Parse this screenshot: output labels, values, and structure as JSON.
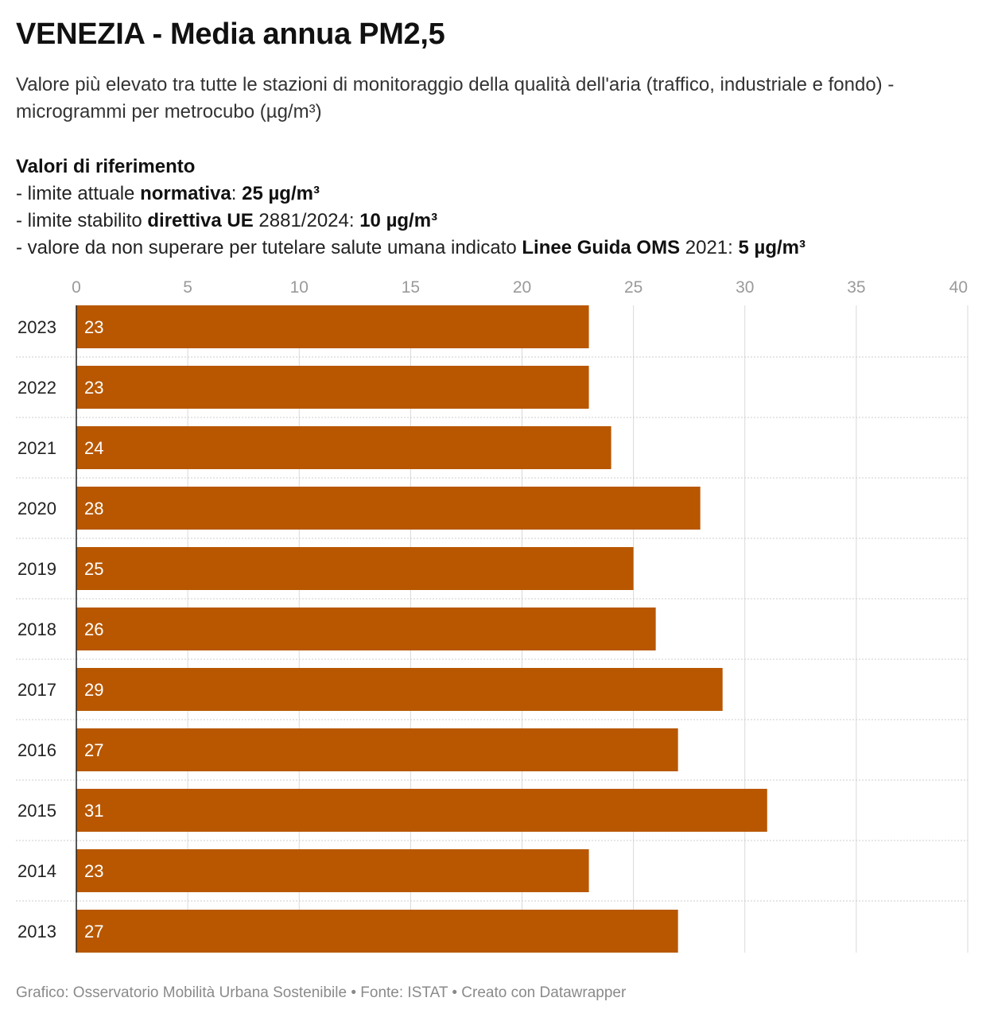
{
  "header": {
    "title": "VENEZIA - Media annua PM2,5",
    "subtitle": "Valore più elevato tra tutte le stazioni di monitoraggio della qualità dell'aria (traffico, industriale e fondo) - microgrammi per metrocubo (µg/m³)"
  },
  "references": {
    "heading": "Valori di riferimento",
    "line1": {
      "prefix": "- limite attuale ",
      "bold_label": "normativa",
      "sep": ": ",
      "bold_value": "25 µg/m³"
    },
    "line2": {
      "prefix": "- limite stabilito ",
      "bold_label": "direttiva UE",
      "mid": " 2881/2024: ",
      "bold_value": "10 µg/m³"
    },
    "line3": {
      "prefix": "- valore da non superare per tutelare salute umana indicato ",
      "bold_label": "Linee Guida OMS",
      "mid": " 2021: ",
      "bold_value": "5 µg/m³"
    }
  },
  "footer": {
    "text": "Grafico: Osservatorio Mobilità Urbana Sostenibile • Fonte: ISTAT • Creato con Datawrapper"
  },
  "chart_data": {
    "type": "bar",
    "orientation": "horizontal",
    "categories": [
      "2023",
      "2022",
      "2021",
      "2020",
      "2019",
      "2018",
      "2017",
      "2016",
      "2015",
      "2014",
      "2013"
    ],
    "values": [
      23,
      23,
      24,
      28,
      25,
      26,
      29,
      27,
      31,
      23,
      27
    ],
    "xlim": [
      0,
      40
    ],
    "xticks": [
      0,
      5,
      10,
      15,
      20,
      25,
      30,
      35,
      40
    ],
    "tick_labels": [
      "0",
      "5",
      "10",
      "15",
      "20",
      "25",
      "30",
      "35",
      "40"
    ],
    "xaxis_position": "top",
    "grid": true,
    "legend": "none",
    "colors": {
      "bar": "#b85700",
      "bar_label": "#ffffff",
      "grid": "#d9d9d9",
      "row_separator": "#cccccc",
      "axis": "#222222",
      "tick_label": "#9a9a9a",
      "category_label": "#222222"
    }
  }
}
